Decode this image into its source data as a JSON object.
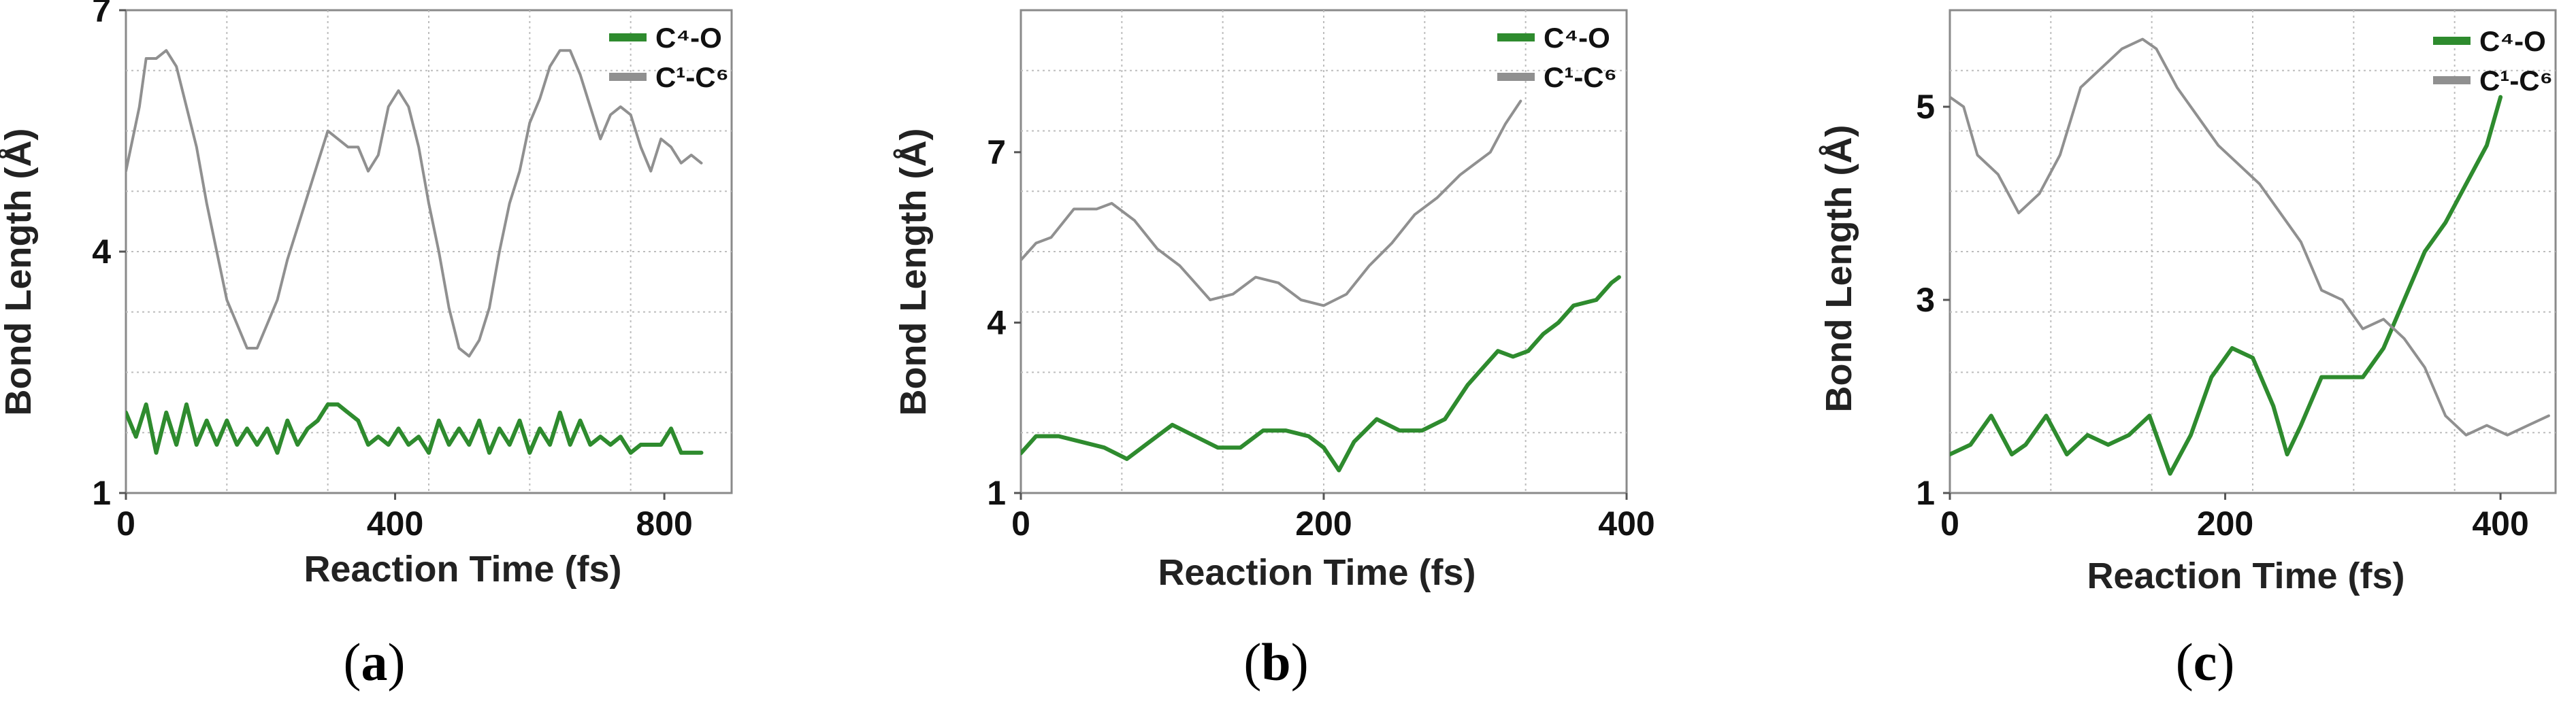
{
  "chart_data": [
    {
      "type": "line",
      "panel_label": "a",
      "xlabel": "Reaction Time (fs)",
      "ylabel": "Bond Length (Å)",
      "xlim": [
        0,
        900
      ],
      "ylim": [
        1,
        7
      ],
      "xticks": [
        0,
        400,
        800
      ],
      "yticks": [
        1,
        4,
        7
      ],
      "legend_position": "top-right",
      "series": [
        {
          "name": "C⁴-O",
          "color": "#2e8b2e",
          "x": [
            0,
            15,
            30,
            45,
            60,
            75,
            90,
            105,
            120,
            135,
            150,
            165,
            180,
            195,
            210,
            225,
            240,
            255,
            270,
            285,
            300,
            315,
            330,
            345,
            360,
            375,
            390,
            405,
            420,
            435,
            450,
            465,
            480,
            495,
            510,
            525,
            540,
            555,
            570,
            585,
            600,
            615,
            630,
            645,
            660,
            675,
            690,
            705,
            720,
            735,
            750,
            765,
            780,
            795,
            810,
            825,
            840,
            855
          ],
          "y": [
            2.0,
            1.7,
            2.1,
            1.5,
            2.0,
            1.6,
            2.1,
            1.6,
            1.9,
            1.6,
            1.9,
            1.6,
            1.8,
            1.6,
            1.8,
            1.5,
            1.9,
            1.6,
            1.8,
            1.9,
            2.1,
            2.1,
            2.0,
            1.9,
            1.6,
            1.7,
            1.6,
            1.8,
            1.6,
            1.7,
            1.5,
            1.9,
            1.6,
            1.8,
            1.6,
            1.9,
            1.5,
            1.8,
            1.6,
            1.9,
            1.5,
            1.8,
            1.6,
            2.0,
            1.6,
            1.9,
            1.6,
            1.7,
            1.6,
            1.7,
            1.5,
            1.6,
            1.6,
            1.6,
            1.8,
            1.5,
            1.5,
            1.5
          ]
        },
        {
          "name": "C¹-C⁶",
          "color": "#909090",
          "x": [
            0,
            10,
            20,
            30,
            45,
            60,
            75,
            90,
            105,
            120,
            135,
            150,
            165,
            180,
            195,
            210,
            225,
            240,
            255,
            270,
            285,
            300,
            315,
            330,
            345,
            360,
            375,
            390,
            405,
            420,
            435,
            450,
            465,
            480,
            495,
            510,
            525,
            540,
            555,
            570,
            585,
            600,
            615,
            630,
            645,
            660,
            675,
            690,
            705,
            720,
            735,
            750,
            765,
            780,
            795,
            810,
            825,
            840,
            855
          ],
          "y": [
            5.0,
            5.4,
            5.8,
            6.4,
            6.4,
            6.5,
            6.3,
            5.8,
            5.3,
            4.6,
            4.0,
            3.4,
            3.1,
            2.8,
            2.8,
            3.1,
            3.4,
            3.9,
            4.3,
            4.7,
            5.1,
            5.5,
            5.4,
            5.3,
            5.3,
            5.0,
            5.2,
            5.8,
            6.0,
            5.8,
            5.3,
            4.6,
            4.0,
            3.3,
            2.8,
            2.7,
            2.9,
            3.3,
            4.0,
            4.6,
            5.0,
            5.6,
            5.9,
            6.3,
            6.5,
            6.5,
            6.2,
            5.8,
            5.4,
            5.7,
            5.8,
            5.7,
            5.3,
            5.0,
            5.4,
            5.3,
            5.1,
            5.2,
            5.1
          ]
        }
      ]
    },
    {
      "type": "line",
      "panel_label": "b",
      "xlabel": "Reaction Time (fs)",
      "ylabel": "Bond Length (Å)",
      "xlim": [
        0,
        400
      ],
      "ylim": [
        1,
        9.5
      ],
      "xticks": [
        0,
        200,
        400
      ],
      "yticks": [
        1,
        4,
        7
      ],
      "legend_position": "top-right",
      "series": [
        {
          "name": "C⁴-O",
          "color": "#2e8b2e",
          "x": [
            0,
            10,
            25,
            40,
            55,
            70,
            85,
            100,
            115,
            130,
            145,
            160,
            175,
            190,
            200,
            210,
            220,
            235,
            250,
            265,
            280,
            295,
            305,
            315,
            325,
            335,
            345,
            355,
            365,
            380,
            390,
            395
          ],
          "y": [
            1.7,
            2.0,
            2.0,
            1.9,
            1.8,
            1.6,
            1.9,
            2.2,
            2.0,
            1.8,
            1.8,
            2.1,
            2.1,
            2.0,
            1.8,
            1.4,
            1.9,
            2.3,
            2.1,
            2.1,
            2.3,
            2.9,
            3.2,
            3.5,
            3.4,
            3.5,
            3.8,
            4.0,
            4.3,
            4.4,
            4.7,
            4.8
          ]
        },
        {
          "name": "C¹-C⁶",
          "color": "#909090",
          "x": [
            0,
            10,
            20,
            35,
            50,
            60,
            75,
            90,
            105,
            115,
            125,
            140,
            155,
            170,
            185,
            200,
            215,
            230,
            245,
            260,
            275,
            290,
            300,
            310,
            320,
            330
          ],
          "y": [
            5.1,
            5.4,
            5.5,
            6.0,
            6.0,
            6.1,
            5.8,
            5.3,
            5.0,
            4.7,
            4.4,
            4.5,
            4.8,
            4.7,
            4.4,
            4.3,
            4.5,
            5.0,
            5.4,
            5.9,
            6.2,
            6.6,
            6.8,
            7.0,
            7.5,
            7.9
          ]
        }
      ]
    },
    {
      "type": "line",
      "panel_label": "c",
      "xlabel": "Reaction Time (fs)",
      "ylabel": "Bond Length (Å)",
      "xlim": [
        0,
        440
      ],
      "ylim": [
        1,
        6
      ],
      "xticks": [
        0,
        200,
        400
      ],
      "yticks": [
        1,
        3,
        5
      ],
      "legend_position": "top-right",
      "series": [
        {
          "name": "C⁴-O",
          "color": "#2e8b2e",
          "x": [
            0,
            15,
            30,
            45,
            55,
            70,
            85,
            100,
            115,
            130,
            145,
            160,
            175,
            190,
            205,
            220,
            235,
            245,
            255,
            270,
            285,
            300,
            315,
            330,
            345,
            360,
            375,
            390,
            400
          ],
          "y": [
            1.4,
            1.5,
            1.8,
            1.4,
            1.5,
            1.8,
            1.4,
            1.6,
            1.5,
            1.6,
            1.8,
            1.2,
            1.6,
            2.2,
            2.5,
            2.4,
            1.9,
            1.4,
            1.7,
            2.2,
            2.2,
            2.2,
            2.5,
            3.0,
            3.5,
            3.8,
            4.2,
            4.6,
            5.1
          ]
        },
        {
          "name": "C¹-C⁶",
          "color": "#909090",
          "x": [
            0,
            10,
            20,
            35,
            50,
            65,
            80,
            95,
            110,
            125,
            140,
            150,
            165,
            180,
            195,
            210,
            225,
            240,
            255,
            270,
            285,
            300,
            315,
            330,
            345,
            360,
            375,
            390,
            405,
            420,
            435
          ],
          "y": [
            5.1,
            5.0,
            4.5,
            4.3,
            3.9,
            4.1,
            4.5,
            5.2,
            5.4,
            5.6,
            5.7,
            5.6,
            5.2,
            4.9,
            4.6,
            4.4,
            4.2,
            3.9,
            3.6,
            3.1,
            3.0,
            2.7,
            2.8,
            2.6,
            2.3,
            1.8,
            1.6,
            1.7,
            1.6,
            1.7,
            1.8
          ]
        }
      ]
    }
  ]
}
